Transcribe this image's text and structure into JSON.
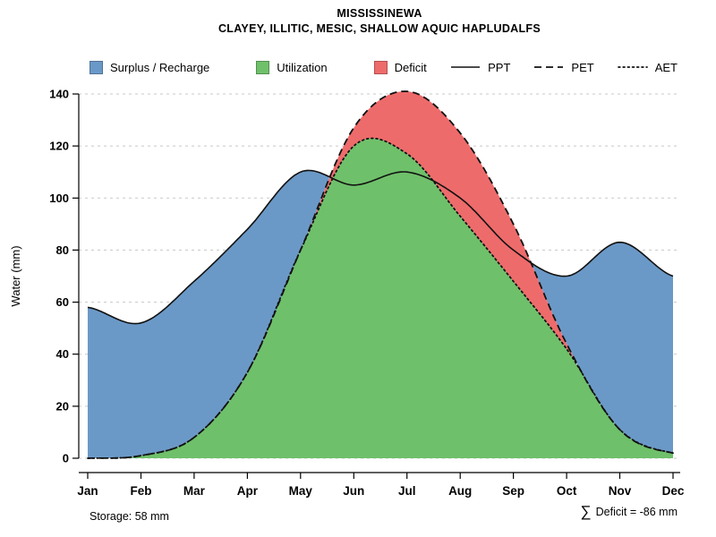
{
  "title": {
    "line1": "MISSISSINEWA",
    "line2": "CLAYEY, ILLITIC, MESIC, SHALLOW AQUIC HAPLUDALFS"
  },
  "axes": {
    "y_label": "Water (mm)",
    "y_ticks": [
      0,
      20,
      40,
      60,
      80,
      100,
      120,
      140
    ]
  },
  "annotations": {
    "storage": "Storage: 58 mm",
    "deficit_symbol": "∑",
    "deficit_text": "Deficit = -86 mm"
  },
  "chart_data": {
    "type": "area",
    "title": "MISSISSINEWA",
    "subtitle": "CLAYEY, ILLITIC, MESIC, SHALLOW AQUIC HAPLUDALFS",
    "xlabel": "",
    "ylabel": "Water (mm)",
    "ylim": [
      0,
      145
    ],
    "grid": "horizontal-dashed",
    "legend_position": "top",
    "x": [
      "Jan",
      "Feb",
      "Mar",
      "Apr",
      "May",
      "Jun",
      "Jul",
      "Aug",
      "Sep",
      "Oct",
      "Nov",
      "Dec"
    ],
    "series": [
      {
        "name": "PPT",
        "style": "solid",
        "values": [
          58,
          52,
          68,
          88,
          110,
          105,
          110,
          100,
          80,
          70,
          83,
          70
        ]
      },
      {
        "name": "PET",
        "style": "dashed",
        "values": [
          0,
          1,
          8,
          33,
          80,
          127,
          141,
          125,
          90,
          44,
          11,
          2
        ]
      },
      {
        "name": "AET",
        "style": "dotted",
        "values": [
          0,
          1,
          8,
          33,
          80,
          120,
          117,
          93,
          68,
          42,
          11,
          2
        ]
      }
    ],
    "areas": [
      {
        "id": "surplus-recharge",
        "name": "Surplus / Recharge",
        "color": "#6B99C7",
        "between": [
          "PPT",
          "PET"
        ],
        "min_gap": 0.05
      },
      {
        "id": "utilization",
        "name": "Utilization",
        "color": "#6FC06A",
        "between": [
          "AET",
          "ZERO"
        ],
        "min_gap": 0.05
      },
      {
        "id": "deficit",
        "name": "Deficit",
        "color": "#EE6B6B",
        "between": [
          "PET",
          "AET"
        ],
        "min_gap": 0.5
      }
    ],
    "storage_mm": 58,
    "deficit_sum_mm": -86
  }
}
